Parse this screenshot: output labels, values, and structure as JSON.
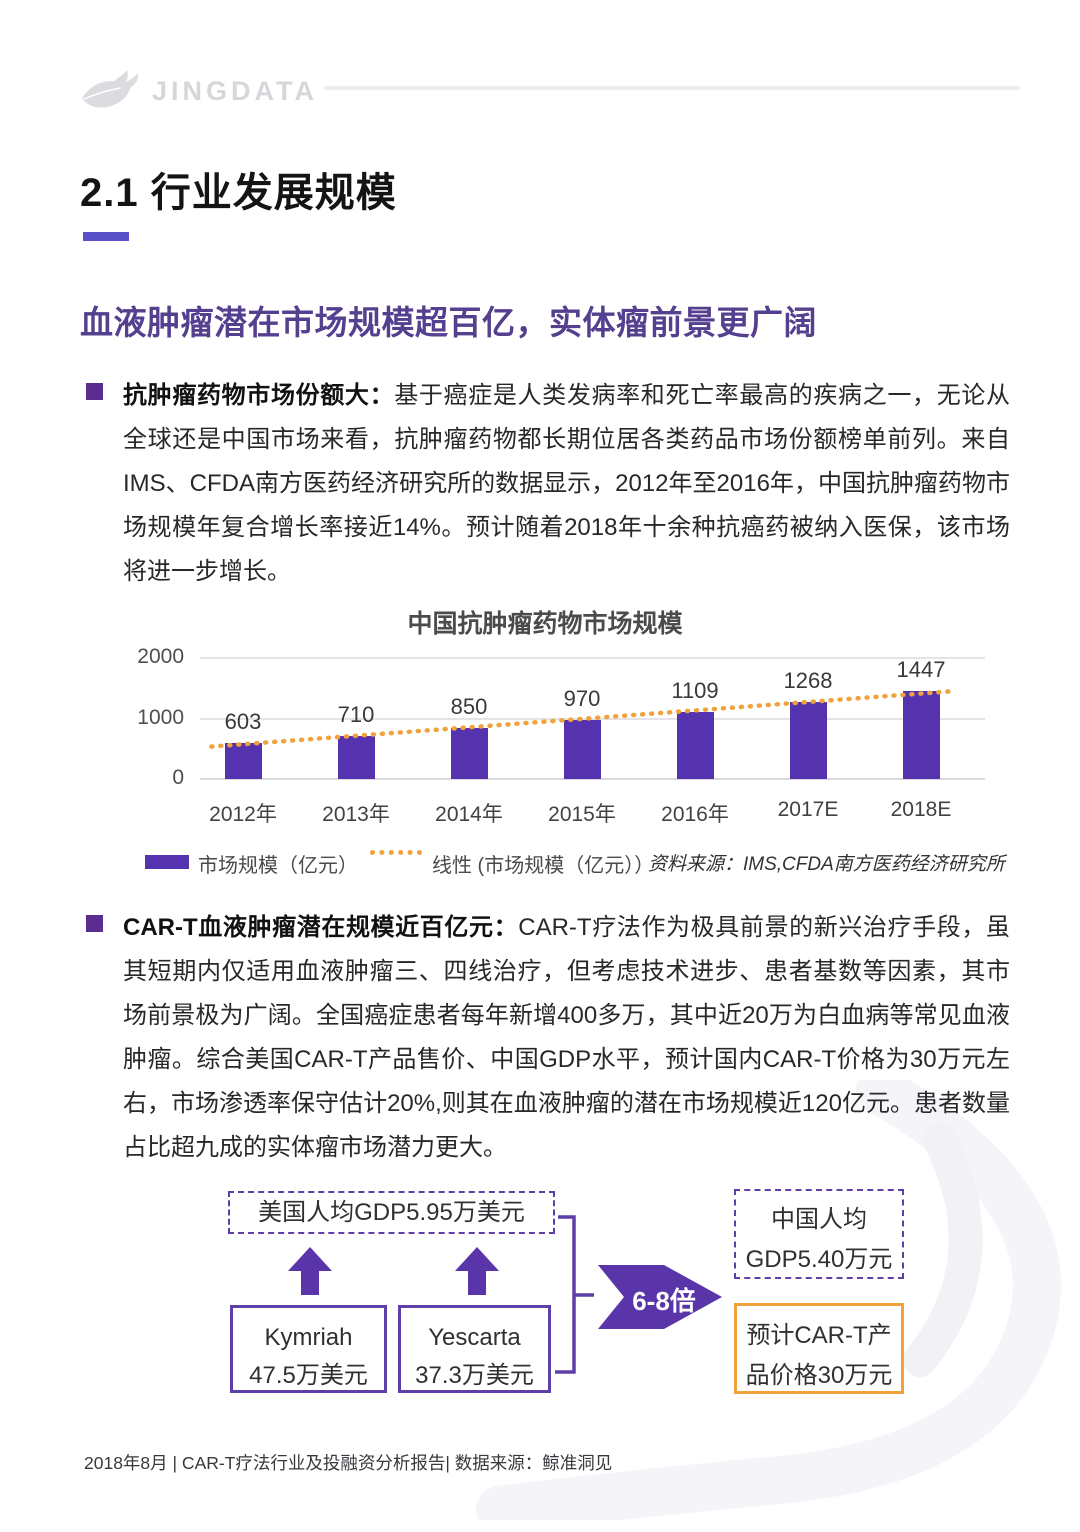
{
  "header": {
    "brand": "JINGDATA"
  },
  "section": {
    "title": "2.1 行业发展规模"
  },
  "headline": "血液肿瘤潜在市场规模超百亿，实体瘤前景更广阔",
  "bullets": [
    {
      "lead": "抗肿瘤药物市场份额大：",
      "body": "基于癌症是人类发病率和死亡率最高的疾病之一，无论从全球还是中国市场来看，抗肿瘤药物都长期位居各类药品市场份额榜单前列。来自IMS、CFDA南方医药经济研究所的数据显示，2012年至2016年，中国抗肿瘤药物市场规模年复合增长率接近14%。预计随着2018年十余种抗癌药被纳入医保，该市场将进一步增长。"
    },
    {
      "lead": "CAR-T血液肿瘤潜在规模近百亿元：",
      "body": "CAR-T疗法作为极具前景的新兴治疗手段，虽其短期内仅适用血液肿瘤三、四线治疗，但考虑技术进步、患者基数等因素，其市场前景极为广阔。全国癌症患者每年新增400多万，其中近20万为白血病等常见血液肿瘤。综合美国CAR-T产品售价、中国GDP水平，预计国内CAR-T价格为30万元左右，市场渗透率保守估计20%,则其在血液肿瘤的潜在市场规模近120亿元。患者数量占比超九成的实体瘤市场潜力更大。"
    }
  ],
  "chart_data": {
    "type": "bar",
    "title": "中国抗肿瘤药物市场规模",
    "categories": [
      "2012年",
      "2013年",
      "2014年",
      "2015年",
      "2016年",
      "2017E",
      "2018E"
    ],
    "values": [
      603,
      710,
      850,
      970,
      1109,
      1268,
      1447
    ],
    "ylim": [
      0,
      2000
    ],
    "yticks": [
      0,
      1000,
      2000
    ],
    "grid": true,
    "bar_color": "#5633ae",
    "trend_color": "#f0a23c",
    "trendline": "linear",
    "legend_bar": "市场规模（亿元）",
    "legend_line": "线性 (市场规模（亿元））",
    "source": "资料来源：IMS,CFDA南方医药经济研究所"
  },
  "diagram": {
    "us_gdp": "美国人均GDP5.95万美元",
    "kymriah_line1": "Kymriah",
    "kymriah_line2": "47.5万美元",
    "yescarta_line1": "Yescarta",
    "yescarta_line2": "37.3万美元",
    "multiplier": "6-8倍",
    "china_gdp_line1": "中国人均",
    "china_gdp_line2": "GDP5.40万元",
    "cart_price_line1": "预计CAR-T产",
    "cart_price_line2": "品价格30万元"
  },
  "footer": {
    "text": "2018年8月 | CAR-T疗法行业及投融资分析报告| 数据来源：鲸准洞见"
  },
  "colors": {
    "accent_purple": "#5633ae",
    "underline_purple": "#5a50c8",
    "bullet_purple": "#5c2d91",
    "headline_purple": "#553f8f",
    "box_border_purple": "#5e3fa8",
    "orange": "#f0a23c"
  }
}
